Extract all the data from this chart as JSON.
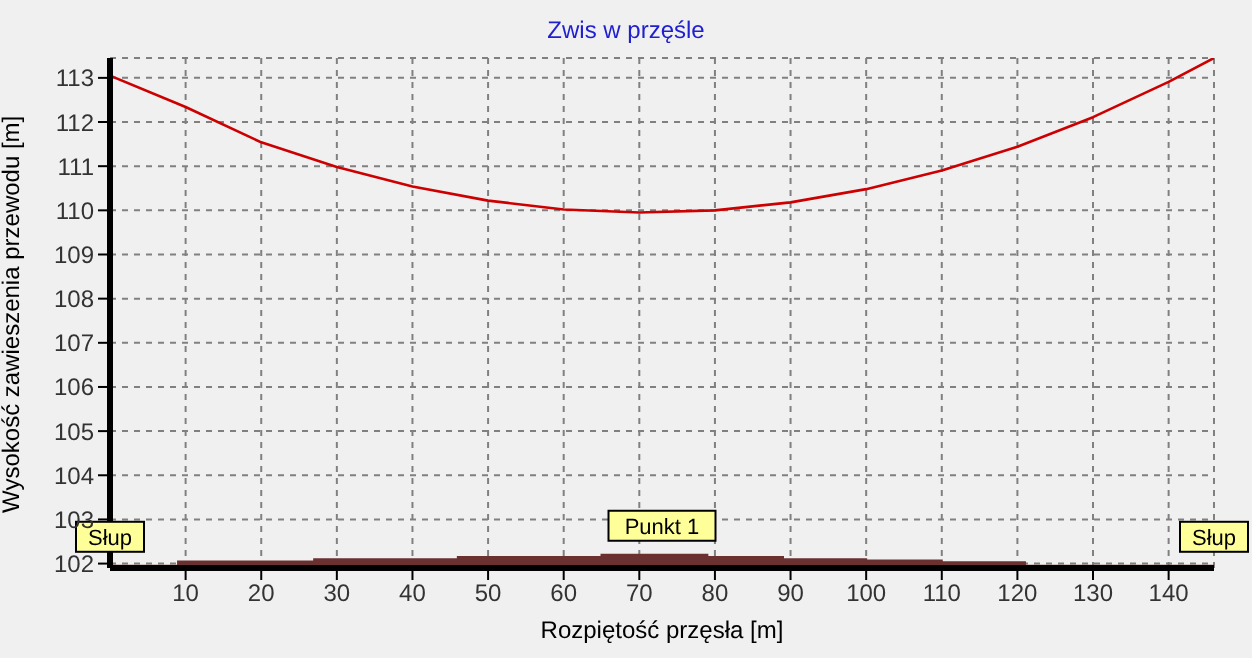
{
  "chart_data": {
    "type": "line",
    "title": "Zwis w przęśle",
    "xlabel": "Rozpiętość przęsła [m]",
    "ylabel": "Wysokość zawieszenia przewodu [m]",
    "series": [
      {
        "color": "#cc0000",
        "x": [
          0,
          10,
          20,
          30,
          40,
          50,
          60,
          70,
          80,
          90,
          100,
          110,
          120,
          130,
          140,
          146
        ],
        "values": [
          113.05,
          112.34,
          111.54,
          110.98,
          110.54,
          110.22,
          110.02,
          109.95,
          110.0,
          110.18,
          110.48,
          110.9,
          111.44,
          112.11,
          112.91,
          113.45
        ]
      },
      {
        "type": "area",
        "color": "#6b3030",
        "x": [
          0,
          9,
          9,
          27,
          27,
          46,
          46,
          65,
          65,
          79,
          79,
          89,
          89,
          100,
          100,
          110,
          110,
          121,
          121,
          146
        ],
        "values": [
          101.95,
          101.95,
          102.05,
          102.05,
          102.1,
          102.1,
          102.15,
          102.15,
          102.2,
          102.2,
          102.15,
          102.15,
          102.1,
          102.1,
          102.07,
          102.07,
          102.03,
          102.03,
          101.95,
          101.95
        ]
      }
    ],
    "xlim": [
      0,
      146
    ],
    "xticks": [
      10,
      20,
      30,
      40,
      50,
      60,
      70,
      80,
      90,
      100,
      110,
      120,
      130,
      140
    ],
    "ylim": [
      101.9,
      113.45
    ],
    "yticks": [
      102,
      103,
      104,
      105,
      106,
      107,
      108,
      109,
      110,
      111,
      112,
      113
    ],
    "grid": true,
    "line_style": "solid",
    "marker": "none",
    "annotations": [
      {
        "text": "Słup",
        "x": 0,
        "y": 101.95
      },
      {
        "text": "Punkt 1",
        "x": 73,
        "y": 102.2
      },
      {
        "text": "Słup",
        "x": 146,
        "y": 101.95
      }
    ]
  }
}
